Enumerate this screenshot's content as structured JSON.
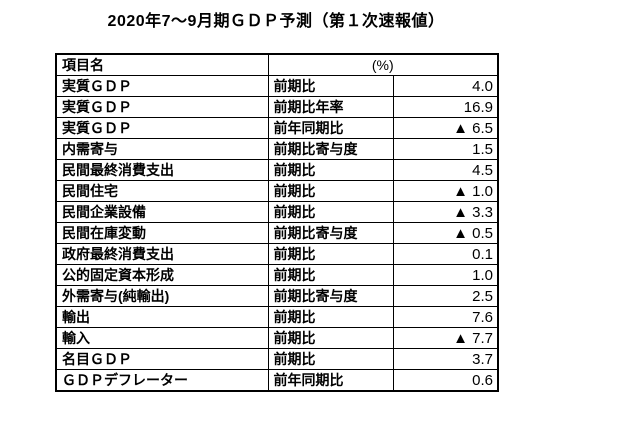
{
  "page": {
    "title": "2020年7～9月期ＧＤＰ予測（第１次速報値）"
  },
  "colors": {
    "text": "#000000",
    "border": "#000000",
    "background": "#ffffff"
  },
  "table": {
    "header": {
      "item_col": "項目名",
      "unit_col": "(%)"
    },
    "rows": [
      {
        "item": "実質ＧＤＰ",
        "metric": "前期比",
        "value": "4.0"
      },
      {
        "item": "実質ＧＤＰ",
        "metric": "前期比年率",
        "value": "16.9"
      },
      {
        "item": "実質ＧＤＰ",
        "metric": "前年同期比",
        "value": "▲ 6.5"
      },
      {
        "item": "内需寄与",
        "metric": "前期比寄与度",
        "value": "1.5"
      },
      {
        "item": "民間最終消費支出",
        "metric": "前期比",
        "value": "4.5"
      },
      {
        "item": "民間住宅",
        "metric": "前期比",
        "value": "▲ 1.0"
      },
      {
        "item": "民間企業設備",
        "metric": "前期比",
        "value": "▲ 3.3"
      },
      {
        "item": "民間在庫変動",
        "metric": "前期比寄与度",
        "value": "▲ 0.5"
      },
      {
        "item": "政府最終消費支出",
        "metric": "前期比",
        "value": "0.1"
      },
      {
        "item": "公的固定資本形成",
        "metric": "前期比",
        "value": "1.0"
      },
      {
        "item": "外需寄与(純輸出)",
        "metric": "前期比寄与度",
        "value": "2.5"
      },
      {
        "item": "輸出",
        "metric": "前期比",
        "value": "7.6"
      },
      {
        "item": "輸入",
        "metric": "前期比",
        "value": "▲ 7.7"
      },
      {
        "item": "名目ＧＤＰ",
        "metric": "前期比",
        "value": "3.7"
      },
      {
        "item": "ＧＤＰデフレーター",
        "metric": "前年同期比",
        "value": "0.6"
      }
    ]
  }
}
